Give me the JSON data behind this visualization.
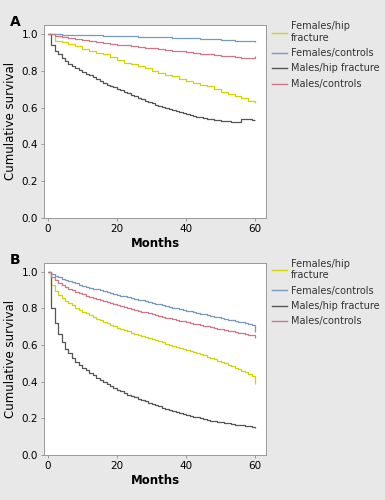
{
  "panel_A": {
    "label": "A",
    "curves": {
      "females_hip": {
        "color": "#d4d400",
        "x": [
          0,
          2,
          4,
          6,
          8,
          10,
          12,
          14,
          16,
          18,
          20,
          22,
          24,
          26,
          28,
          30,
          32,
          34,
          36,
          38,
          40,
          42,
          44,
          46,
          48,
          50,
          52,
          54,
          56,
          58,
          60
        ],
        "y": [
          1.0,
          0.965,
          0.955,
          0.945,
          0.935,
          0.92,
          0.91,
          0.9,
          0.89,
          0.875,
          0.86,
          0.845,
          0.835,
          0.825,
          0.815,
          0.8,
          0.79,
          0.78,
          0.77,
          0.755,
          0.745,
          0.735,
          0.725,
          0.715,
          0.7,
          0.685,
          0.675,
          0.665,
          0.65,
          0.635,
          0.625
        ]
      },
      "females_controls": {
        "color": "#7799bb",
        "x": [
          0,
          2,
          4,
          6,
          8,
          10,
          12,
          14,
          16,
          18,
          20,
          22,
          24,
          26,
          28,
          30,
          32,
          34,
          36,
          38,
          40,
          42,
          44,
          46,
          48,
          50,
          52,
          54,
          56,
          58,
          60
        ],
        "y": [
          1.0,
          0.999,
          0.998,
          0.997,
          0.996,
          0.995,
          0.994,
          0.993,
          0.992,
          0.991,
          0.99,
          0.989,
          0.988,
          0.987,
          0.986,
          0.985,
          0.983,
          0.982,
          0.981,
          0.979,
          0.978,
          0.977,
          0.976,
          0.974,
          0.972,
          0.97,
          0.968,
          0.965,
          0.963,
          0.961,
          0.96
        ]
      },
      "males_hip": {
        "color": "#555555",
        "x": [
          0,
          1,
          2,
          3,
          4,
          5,
          6,
          7,
          8,
          9,
          10,
          11,
          12,
          13,
          14,
          15,
          16,
          17,
          18,
          19,
          20,
          21,
          22,
          23,
          24,
          25,
          26,
          27,
          28,
          29,
          30,
          31,
          32,
          33,
          34,
          35,
          36,
          37,
          38,
          39,
          40,
          41,
          42,
          43,
          44,
          45,
          46,
          47,
          48,
          49,
          50,
          51,
          52,
          53,
          54,
          55,
          56,
          57,
          58,
          59,
          60
        ],
        "y": [
          1.0,
          0.94,
          0.91,
          0.89,
          0.87,
          0.855,
          0.84,
          0.825,
          0.815,
          0.805,
          0.795,
          0.785,
          0.775,
          0.765,
          0.755,
          0.745,
          0.735,
          0.725,
          0.718,
          0.71,
          0.702,
          0.694,
          0.686,
          0.678,
          0.67,
          0.662,
          0.654,
          0.646,
          0.638,
          0.63,
          0.622,
          0.616,
          0.608,
          0.602,
          0.595,
          0.59,
          0.584,
          0.579,
          0.573,
          0.568,
          0.562,
          0.558,
          0.554,
          0.55,
          0.546,
          0.543,
          0.54,
          0.537,
          0.534,
          0.531,
          0.528,
          0.526,
          0.524,
          0.522,
          0.52,
          0.519,
          0.537,
          0.536,
          0.535,
          0.534,
          0.533
        ]
      },
      "males_controls": {
        "color": "#cc7788",
        "x": [
          0,
          2,
          4,
          6,
          8,
          10,
          12,
          14,
          16,
          18,
          20,
          22,
          24,
          26,
          28,
          30,
          32,
          34,
          36,
          38,
          40,
          42,
          44,
          46,
          48,
          50,
          52,
          54,
          56,
          58,
          60
        ],
        "y": [
          1.0,
          0.99,
          0.982,
          0.977,
          0.972,
          0.967,
          0.962,
          0.957,
          0.952,
          0.948,
          0.943,
          0.939,
          0.934,
          0.93,
          0.926,
          0.922,
          0.918,
          0.914,
          0.91,
          0.906,
          0.902,
          0.898,
          0.894,
          0.89,
          0.886,
          0.882,
          0.879,
          0.876,
          0.872,
          0.869,
          0.882
        ]
      }
    },
    "ylim": [
      0.0,
      1.05
    ],
    "xlim": [
      -1,
      63
    ],
    "xticks": [
      0,
      20,
      40,
      60
    ],
    "yticks": [
      0.0,
      0.2,
      0.4,
      0.6,
      0.8,
      1.0
    ]
  },
  "panel_B": {
    "label": "B",
    "curves": {
      "females_hip": {
        "color": "#d4d400",
        "x": [
          0,
          1,
          2,
          3,
          4,
          5,
          6,
          7,
          8,
          9,
          10,
          11,
          12,
          13,
          14,
          15,
          16,
          17,
          18,
          19,
          20,
          21,
          22,
          23,
          24,
          25,
          26,
          27,
          28,
          29,
          30,
          31,
          32,
          33,
          34,
          35,
          36,
          37,
          38,
          39,
          40,
          41,
          42,
          43,
          44,
          45,
          46,
          47,
          48,
          49,
          50,
          51,
          52,
          53,
          54,
          55,
          56,
          57,
          58,
          59,
          60
        ],
        "y": [
          1.0,
          0.925,
          0.895,
          0.875,
          0.855,
          0.84,
          0.828,
          0.816,
          0.804,
          0.793,
          0.782,
          0.772,
          0.762,
          0.752,
          0.743,
          0.734,
          0.726,
          0.718,
          0.71,
          0.702,
          0.695,
          0.688,
          0.681,
          0.674,
          0.667,
          0.661,
          0.655,
          0.649,
          0.643,
          0.637,
          0.631,
          0.625,
          0.62,
          0.614,
          0.608,
          0.602,
          0.597,
          0.591,
          0.586,
          0.58,
          0.574,
          0.568,
          0.562,
          0.555,
          0.549,
          0.543,
          0.536,
          0.529,
          0.522,
          0.515,
          0.508,
          0.5,
          0.492,
          0.484,
          0.476,
          0.468,
          0.46,
          0.452,
          0.444,
          0.43,
          0.39
        ]
      },
      "females_controls": {
        "color": "#7799bb",
        "x": [
          0,
          1,
          2,
          3,
          4,
          5,
          6,
          7,
          8,
          9,
          10,
          11,
          12,
          13,
          14,
          15,
          16,
          17,
          18,
          19,
          20,
          21,
          22,
          23,
          24,
          25,
          26,
          27,
          28,
          29,
          30,
          31,
          32,
          33,
          34,
          35,
          36,
          37,
          38,
          39,
          40,
          41,
          42,
          43,
          44,
          45,
          46,
          47,
          48,
          49,
          50,
          51,
          52,
          53,
          54,
          55,
          56,
          57,
          58,
          59,
          60
        ],
        "y": [
          1.0,
          0.988,
          0.978,
          0.97,
          0.962,
          0.955,
          0.948,
          0.942,
          0.936,
          0.93,
          0.924,
          0.919,
          0.913,
          0.908,
          0.903,
          0.898,
          0.893,
          0.888,
          0.883,
          0.878,
          0.874,
          0.869,
          0.865,
          0.86,
          0.856,
          0.851,
          0.847,
          0.843,
          0.838,
          0.834,
          0.83,
          0.826,
          0.821,
          0.817,
          0.813,
          0.808,
          0.804,
          0.8,
          0.795,
          0.791,
          0.787,
          0.783,
          0.779,
          0.775,
          0.771,
          0.767,
          0.763,
          0.759,
          0.755,
          0.751,
          0.747,
          0.743,
          0.739,
          0.735,
          0.731,
          0.727,
          0.723,
          0.719,
          0.715,
          0.711,
          0.67
        ]
      },
      "males_hip": {
        "color": "#555555",
        "x": [
          0,
          1,
          2,
          3,
          4,
          5,
          6,
          7,
          8,
          9,
          10,
          11,
          12,
          13,
          14,
          15,
          16,
          17,
          18,
          19,
          20,
          21,
          22,
          23,
          24,
          25,
          26,
          27,
          28,
          29,
          30,
          31,
          32,
          33,
          34,
          35,
          36,
          37,
          38,
          39,
          40,
          41,
          42,
          43,
          44,
          45,
          46,
          47,
          48,
          49,
          50,
          51,
          52,
          53,
          54,
          55,
          56,
          57,
          58,
          59,
          60
        ],
        "y": [
          1.0,
          0.8,
          0.72,
          0.66,
          0.615,
          0.58,
          0.554,
          0.53,
          0.51,
          0.493,
          0.477,
          0.462,
          0.448,
          0.434,
          0.421,
          0.409,
          0.398,
          0.387,
          0.376,
          0.366,
          0.357,
          0.348,
          0.339,
          0.33,
          0.322,
          0.314,
          0.307,
          0.299,
          0.292,
          0.285,
          0.278,
          0.271,
          0.265,
          0.259,
          0.253,
          0.247,
          0.241,
          0.235,
          0.23,
          0.225,
          0.22,
          0.215,
          0.21,
          0.205,
          0.2,
          0.196,
          0.192,
          0.188,
          0.184,
          0.181,
          0.178,
          0.175,
          0.172,
          0.169,
          0.166,
          0.163,
          0.161,
          0.159,
          0.157,
          0.155,
          0.145
        ]
      },
      "males_controls": {
        "color": "#cc7788",
        "x": [
          0,
          1,
          2,
          3,
          4,
          5,
          6,
          7,
          8,
          9,
          10,
          11,
          12,
          13,
          14,
          15,
          16,
          17,
          18,
          19,
          20,
          21,
          22,
          23,
          24,
          25,
          26,
          27,
          28,
          29,
          30,
          31,
          32,
          33,
          34,
          35,
          36,
          37,
          38,
          39,
          40,
          41,
          42,
          43,
          44,
          45,
          46,
          47,
          48,
          49,
          50,
          51,
          52,
          53,
          54,
          55,
          56,
          57,
          58,
          59,
          60
        ],
        "y": [
          1.0,
          0.97,
          0.955,
          0.94,
          0.925,
          0.915,
          0.907,
          0.899,
          0.891,
          0.884,
          0.877,
          0.87,
          0.864,
          0.858,
          0.852,
          0.846,
          0.84,
          0.834,
          0.829,
          0.823,
          0.818,
          0.813,
          0.807,
          0.802,
          0.797,
          0.792,
          0.787,
          0.782,
          0.778,
          0.773,
          0.768,
          0.764,
          0.759,
          0.755,
          0.75,
          0.746,
          0.742,
          0.737,
          0.733,
          0.729,
          0.725,
          0.721,
          0.717,
          0.713,
          0.709,
          0.705,
          0.702,
          0.698,
          0.694,
          0.69,
          0.687,
          0.683,
          0.679,
          0.675,
          0.672,
          0.668,
          0.664,
          0.66,
          0.657,
          0.653,
          0.64
        ]
      }
    },
    "ylim": [
      0.0,
      1.05
    ],
    "xlim": [
      -1,
      63
    ],
    "xticks": [
      0,
      20,
      40,
      60
    ],
    "yticks": [
      0.0,
      0.2,
      0.4,
      0.6,
      0.8,
      1.0
    ]
  },
  "legend_labels_A": [
    "Females/hip\nfracture",
    "Females/controls",
    "Males/hip fracture",
    "Males/controls"
  ],
  "legend_labels_B": [
    "Females/hip\nfracture",
    "Females/controls",
    "Males/hip fracture",
    "Males/controls"
  ],
  "legend_colors": [
    "#d4d400",
    "#7799bb",
    "#555555",
    "#cc7788"
  ],
  "xlabel": "Months",
  "ylabel": "Cumulative survival",
  "bg_color": "#e8e8e8",
  "plot_bg": "#ffffff",
  "tick_fontsize": 7.5,
  "axis_label_fontsize": 8.5,
  "legend_fontsize": 7.0,
  "panel_label_fontsize": 10
}
